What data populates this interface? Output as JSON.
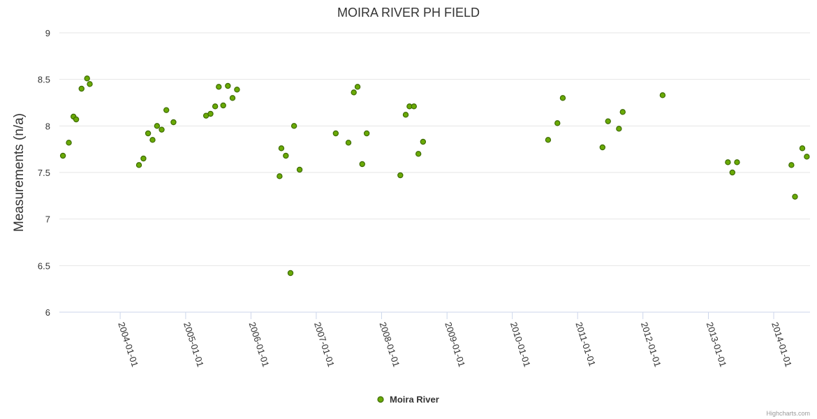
{
  "chart_data": {
    "type": "scatter",
    "title": "MOIRA RIVER PH FIELD",
    "xlabel": "",
    "ylabel": "Measurements (n/a)",
    "ylim": [
      6,
      9
    ],
    "yticks": [
      "6",
      "6.5",
      "7",
      "7.5",
      "8",
      "8.5",
      "9"
    ],
    "xlim": [
      "2003-01-26",
      "2014-07-23"
    ],
    "xticks": [
      "2004-01-01",
      "2005-01-01",
      "2006-01-01",
      "2007-01-01",
      "2008-01-01",
      "2009-01-01",
      "2010-01-01",
      "2011-01-01",
      "2012-01-01",
      "2013-01-01",
      "2014-01-01"
    ],
    "grid": true,
    "legend": "bottom-center",
    "marker_color": "#6aaa05",
    "marker_stroke": "#3d6b02",
    "series": [
      {
        "name": "Moira River",
        "points": [
          [
            "2003-02-15",
            7.68
          ],
          [
            "2003-03-20",
            7.82
          ],
          [
            "2003-04-15",
            8.1
          ],
          [
            "2003-04-30",
            8.07
          ],
          [
            "2003-05-30",
            8.4
          ],
          [
            "2003-06-30",
            8.51
          ],
          [
            "2003-07-15",
            8.45
          ],
          [
            "2004-04-15",
            7.58
          ],
          [
            "2004-05-10",
            7.65
          ],
          [
            "2004-06-05",
            7.92
          ],
          [
            "2004-06-30",
            7.85
          ],
          [
            "2004-07-25",
            8.0
          ],
          [
            "2004-08-20",
            7.96
          ],
          [
            "2004-09-15",
            8.17
          ],
          [
            "2004-10-25",
            8.04
          ],
          [
            "2005-04-25",
            8.11
          ],
          [
            "2005-05-20",
            8.13
          ],
          [
            "2005-06-15",
            8.21
          ],
          [
            "2005-07-05",
            8.42
          ],
          [
            "2005-07-30",
            8.22
          ],
          [
            "2005-08-25",
            8.43
          ],
          [
            "2005-09-20",
            8.3
          ],
          [
            "2005-10-15",
            8.39
          ],
          [
            "2006-06-10",
            7.46
          ],
          [
            "2006-06-20",
            7.76
          ],
          [
            "2006-07-15",
            7.68
          ],
          [
            "2006-08-10",
            6.42
          ],
          [
            "2006-08-30",
            8.0
          ],
          [
            "2006-09-30",
            7.53
          ],
          [
            "2007-04-20",
            7.92
          ],
          [
            "2007-06-30",
            7.82
          ],
          [
            "2007-07-30",
            8.36
          ],
          [
            "2007-08-20",
            8.42
          ],
          [
            "2007-09-15",
            7.59
          ],
          [
            "2007-10-10",
            7.92
          ],
          [
            "2008-04-15",
            7.47
          ],
          [
            "2008-05-15",
            8.12
          ],
          [
            "2008-06-05",
            8.21
          ],
          [
            "2008-06-30",
            8.21
          ],
          [
            "2008-07-25",
            7.7
          ],
          [
            "2008-08-20",
            7.83
          ],
          [
            "2010-07-20",
            7.85
          ],
          [
            "2010-09-10",
            8.03
          ],
          [
            "2010-10-10",
            8.3
          ],
          [
            "2011-05-20",
            7.77
          ],
          [
            "2011-06-20",
            8.05
          ],
          [
            "2011-08-20",
            7.97
          ],
          [
            "2011-09-10",
            8.15
          ],
          [
            "2012-04-20",
            8.33
          ],
          [
            "2013-04-20",
            7.61
          ],
          [
            "2013-05-15",
            7.5
          ],
          [
            "2013-06-10",
            7.61
          ],
          [
            "2014-04-10",
            7.58
          ],
          [
            "2014-04-30",
            7.24
          ],
          [
            "2014-06-10",
            7.76
          ],
          [
            "2014-07-05",
            7.67
          ]
        ]
      }
    ]
  },
  "credit": "Highcharts.com"
}
